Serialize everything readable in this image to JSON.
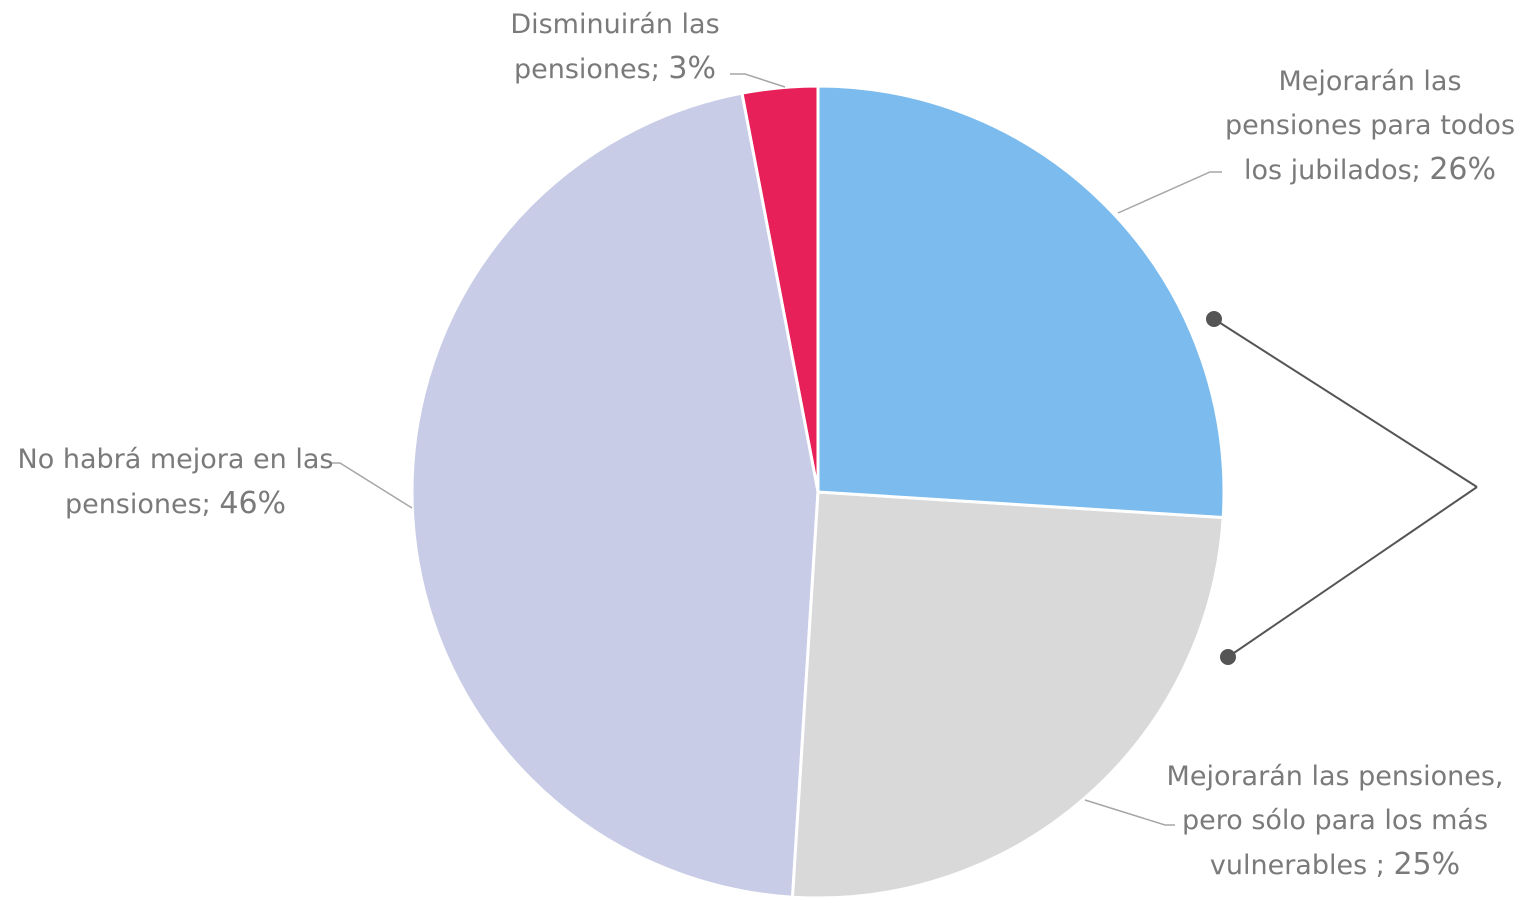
{
  "chart_data": {
    "type": "pie",
    "categories": [
      "Mejorarán las pensiones para todos los jubilados;",
      "Mejorarán las pensiones, pero sólo para los más vulnerables ;",
      "No habrá mejora en las pensiones;",
      "Disminuirán las pensiones;"
    ],
    "values": [
      26,
      25,
      46,
      3
    ],
    "value_labels": [
      "26%",
      "25%",
      "46%",
      "3%"
    ],
    "colors": [
      "#7bbbed",
      "#d9d9d9",
      "#c8cce6",
      "#e8205a"
    ]
  }
}
